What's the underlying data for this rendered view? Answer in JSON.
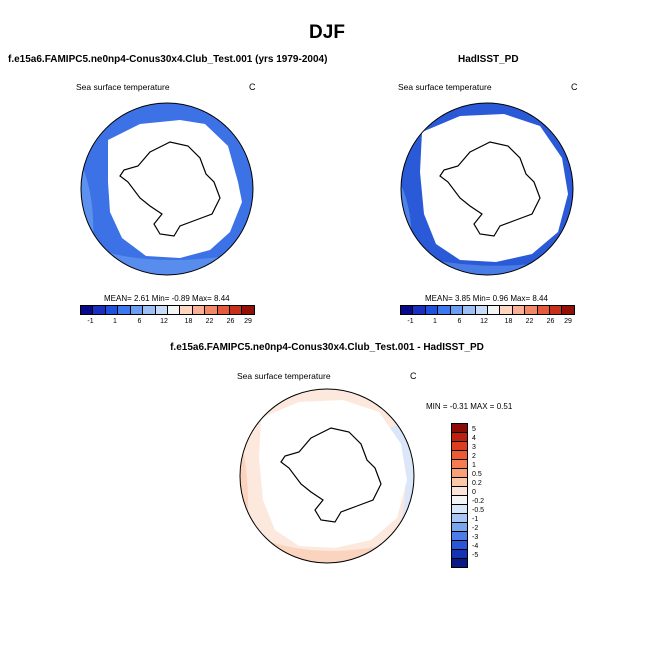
{
  "figure": {
    "title": "DJF"
  },
  "panel_model": {
    "title": "f.e15a6.FAMIPC5.ne0np4-Conus30x4.Club_Test.001 (yrs 1979-2004)",
    "variable": "Sea surface temperature",
    "units": "C",
    "stats": "MEAN=   2.61  Min=  -0.89  Max=   8.44"
  },
  "panel_obs": {
    "title": "HadISST_PD",
    "variable": "Sea surface temperature",
    "units": "C",
    "stats": "MEAN=   3.85  Min=   0.96  Max=   8.44"
  },
  "panel_diff": {
    "title": "f.e15a6.FAMIPC5.ne0np4-Conus30x4.Club_Test.001 - HadISST_PD",
    "variable": "Sea surface temperature",
    "units": "C",
    "stats": "MIN =  -0.31 MAX =   0.51"
  },
  "colorbar_abs": {
    "labels": [
      "-1",
      "1",
      "6",
      "12",
      "18",
      "22",
      "26",
      "29"
    ],
    "colors": [
      "#08088a",
      "#1a2fc2",
      "#2050e0",
      "#3c78ee",
      "#6a9ef2",
      "#9cc0f6",
      "#c8dcf8",
      "#f4f4f4",
      "#fcd6c0",
      "#f8b094",
      "#f28666",
      "#e45a3a",
      "#c8301a",
      "#941006"
    ]
  },
  "colorbar_diff": {
    "labels": [
      "5",
      "4",
      "3",
      "2",
      "1",
      "0.5",
      "0.2",
      "0",
      "-0.2",
      "-0.5",
      "-1",
      "-2",
      "-3",
      "-4",
      "-5"
    ],
    "colors": [
      "#8a0c04",
      "#c0200e",
      "#de3e20",
      "#ee5a34",
      "#f47c50",
      "#f8a07a",
      "#fcc8aa",
      "#fce4d8",
      "#f4f4f4",
      "#d8e6fa",
      "#a8c6f4",
      "#7aa6ee",
      "#4a7ee6",
      "#2a56d8",
      "#1434b4",
      "#0a1888"
    ]
  },
  "colors": {
    "land": "#ffffff",
    "ocean_cool": "#3c72e6",
    "ocean_cold": "#2a5ad8",
    "ocean_warm": "#6a9ef2",
    "diff_warm": "#fbd4c0",
    "diff_cool": "#dbe6f8"
  }
}
